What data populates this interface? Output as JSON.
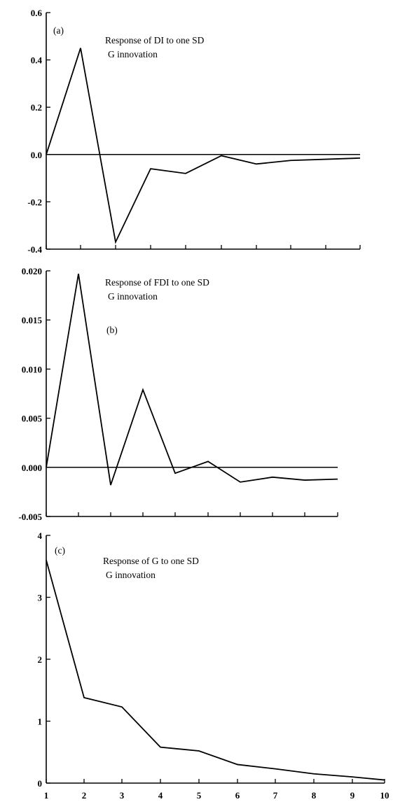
{
  "chart_data": [
    {
      "type": "line",
      "panel_label": "(a)",
      "title_lines": [
        "Response of DI to one SD",
        "G innovation"
      ],
      "ylim": [
        -0.4,
        0.6
      ],
      "yticks": [
        -0.4,
        -0.2,
        0.0,
        0.2,
        0.4,
        0.6
      ],
      "ytick_labels": [
        "-0.4",
        "-0.2",
        "0.0",
        "0.2",
        "0.4",
        "0.6"
      ],
      "x": [
        1,
        2,
        3,
        4,
        5,
        6,
        7,
        8,
        9,
        10
      ],
      "values": [
        0.0,
        0.45,
        -0.37,
        -0.06,
        -0.08,
        -0.005,
        -0.04,
        -0.025,
        -0.02,
        -0.015
      ],
      "zero_line": true
    },
    {
      "type": "line",
      "panel_label": "(b)",
      "title_lines": [
        "Response of FDI to one SD",
        "G innovation"
      ],
      "ylim": [
        -0.005,
        0.02
      ],
      "yticks": [
        -0.005,
        0.0,
        0.005,
        0.01,
        0.015,
        0.02
      ],
      "ytick_labels": [
        "-0.005",
        "0.000",
        "0.005",
        "0.010",
        "0.015",
        "0.020"
      ],
      "x": [
        1,
        2,
        3,
        4,
        5,
        6,
        7,
        8,
        9,
        10
      ],
      "values": [
        0.0,
        0.0197,
        -0.0018,
        0.0079,
        -0.0006,
        0.0006,
        -0.0015,
        -0.001,
        -0.0013,
        -0.0012
      ],
      "zero_line": true
    },
    {
      "type": "line",
      "panel_label": "(c)",
      "title_lines": [
        "Response of G to one SD",
        "G innovation"
      ],
      "ylim": [
        0,
        4
      ],
      "yticks": [
        0,
        1,
        2,
        3,
        4
      ],
      "ytick_labels": [
        "0",
        "1",
        "2",
        "3",
        "4"
      ],
      "x": [
        1,
        2,
        3,
        4,
        5,
        6,
        7,
        8,
        9,
        10
      ],
      "xtick_labels": [
        "1",
        "2",
        "3",
        "4",
        "5",
        "6",
        "7",
        "8",
        "9",
        "10"
      ],
      "values": [
        3.6,
        1.38,
        1.23,
        0.58,
        0.52,
        0.3,
        0.23,
        0.15,
        0.1,
        0.05
      ],
      "zero_line": false
    }
  ]
}
